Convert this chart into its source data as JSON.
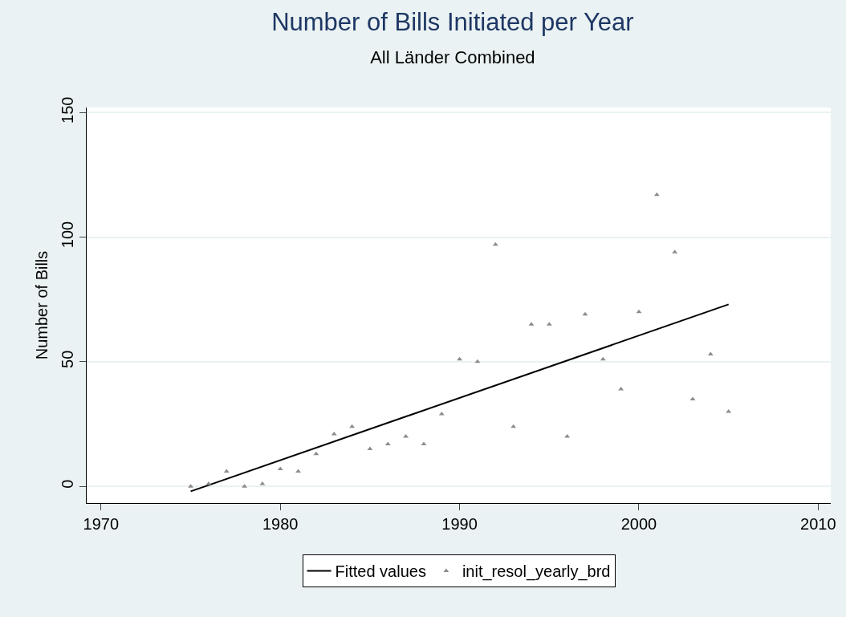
{
  "chart_data": {
    "type": "scatter",
    "title": "Number of Bills Initiated per Year",
    "subtitle": "All Länder Combined",
    "ylabel": "Number of Bills",
    "xlim": [
      1969.2,
      2010.7
    ],
    "xticks": [
      1970,
      1980,
      1990,
      2000,
      2010
    ],
    "ylim": [
      -6.7,
      152
    ],
    "yticks": [
      0,
      50,
      100,
      150
    ],
    "grid": "y",
    "legend": "bottom",
    "series": [
      {
        "name": "Fitted values",
        "type": "line",
        "color": "#000000",
        "marker": "none",
        "line_style": "solid",
        "x": [
          1975,
          2005
        ],
        "values": [
          -2,
          73
        ]
      },
      {
        "name": "init_resol_yearly_brd",
        "color": "#8c8c8c",
        "marker": "triangle",
        "x": [
          1975,
          1976,
          1977,
          1978,
          1979,
          1980,
          1981,
          1982,
          1983,
          1984,
          1985,
          1986,
          1987,
          1988,
          1989,
          1990,
          1991,
          1992,
          1993,
          1994,
          1995,
          1996,
          1997,
          1998,
          1999,
          2000,
          2001,
          2002,
          2003,
          2004,
          2005
        ],
        "values": [
          0,
          1,
          6,
          0,
          1,
          7,
          6,
          13,
          21,
          24,
          15,
          17,
          20,
          17,
          29,
          51,
          50,
          97,
          24,
          65,
          65,
          20,
          69,
          51,
          39,
          70,
          117,
          94,
          35,
          53,
          30
        ]
      }
    ]
  }
}
